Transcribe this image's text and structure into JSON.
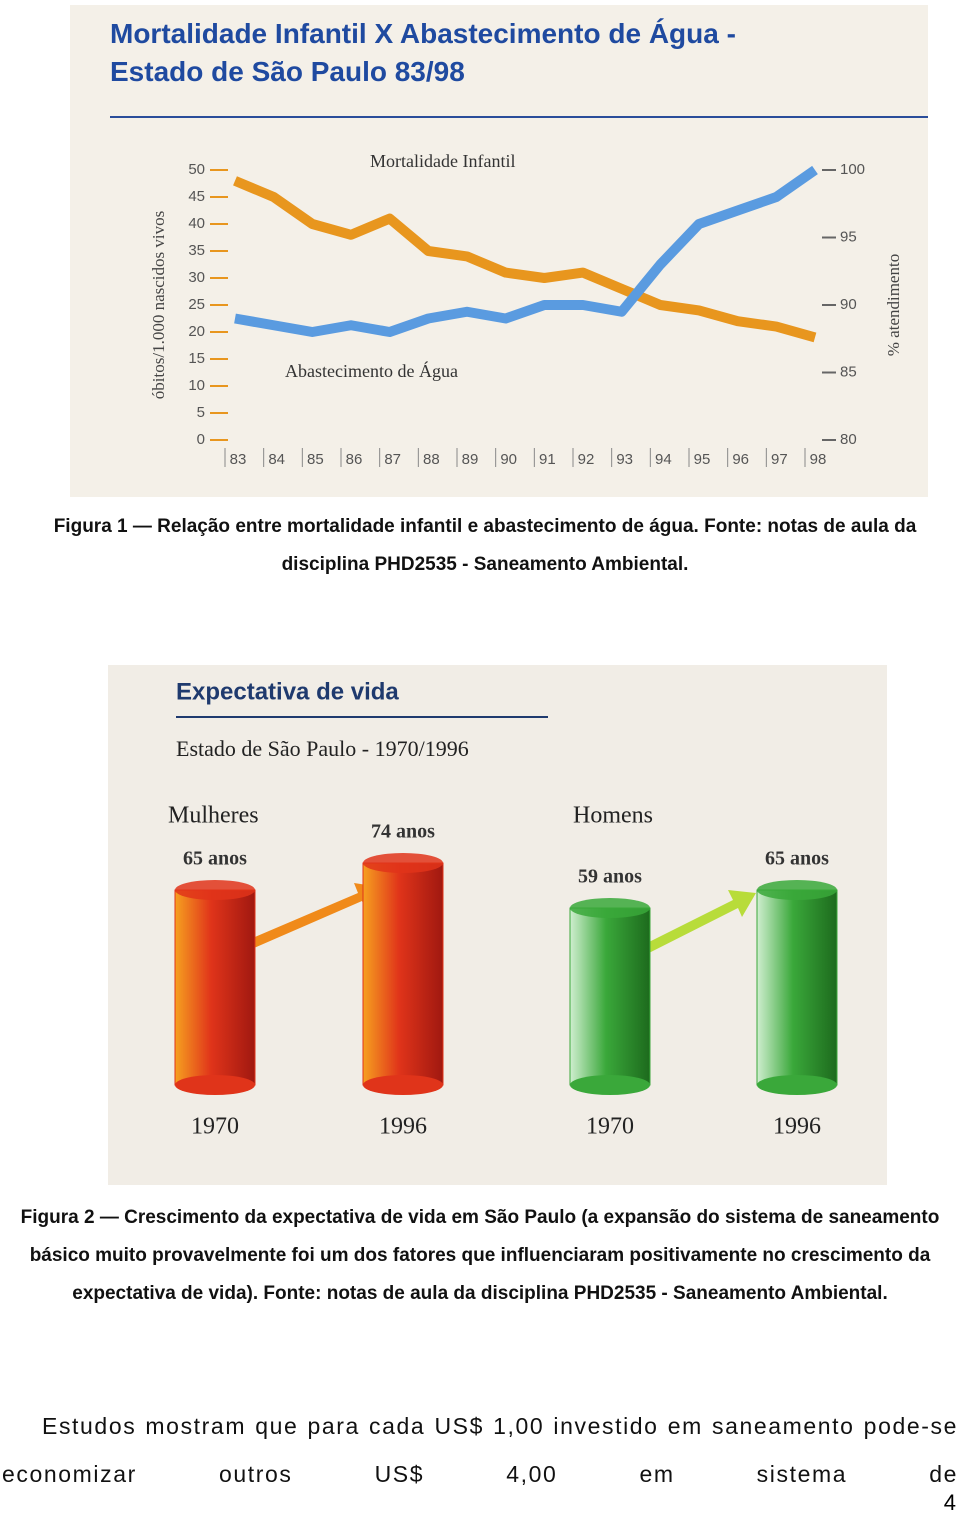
{
  "figures": [
    {
      "chart_data": {
        "type": "line",
        "title": "Mortalidade Infantil X Abastecimento de Água - Estado de São Paulo 83/98",
        "categories": [
          "83",
          "84",
          "85",
          "86",
          "87",
          "88",
          "89",
          "90",
          "91",
          "92",
          "93",
          "94",
          "95",
          "96",
          "97",
          "98"
        ],
        "y_label": "óbitos/1.000 nascidos vivos",
        "y2_label": "% atendimento",
        "ylim": [
          0,
          50
        ],
        "yticks": [
          0,
          5,
          10,
          15,
          20,
          25,
          30,
          35,
          40,
          45,
          50
        ],
        "y2lim": [
          80,
          100
        ],
        "y2ticks": [
          80,
          85,
          90,
          95,
          100
        ],
        "series": [
          {
            "name": "Mortalidade Infantil",
            "color": "#e8961e",
            "values": [
              48,
              45,
              40,
              38,
              41,
              35,
              34,
              31,
              30,
              31,
              28,
              25,
              24,
              22,
              21,
              19
            ]
          },
          {
            "name": "Abastecimento de Água",
            "color": "#5a9be0",
            "axis": "y2",
            "values": [
              89,
              88.5,
              88,
              88.5,
              88,
              89,
              89.5,
              89,
              90,
              90,
              89.5,
              93,
              96,
              97,
              98,
              100
            ]
          }
        ]
      },
      "caption": "Figura 1 — Relação entre mortalidade infantil e abastecimento de água. Fonte: notas de aula da disciplina PHD2535 - Saneamento Ambiental."
    },
    {
      "chart_data": {
        "type": "bar",
        "title": "Expectativa de vida",
        "subtitle": "Estado de São Paulo - 1970/1996",
        "series": [
          {
            "name": "Mulheres",
            "color": "#e0341a",
            "categories": [
              "1970",
              "1996"
            ],
            "values": [
              65,
              74
            ],
            "value_labels": [
              "65 anos",
              "74 anos"
            ]
          },
          {
            "name": "Homens",
            "color": "#3aa83a",
            "categories": [
              "1970",
              "1996"
            ],
            "values": [
              59,
              65
            ],
            "value_labels": [
              "59 anos",
              "65 anos"
            ]
          }
        ]
      },
      "caption": "Figura 2 — Crescimento da expectativa de vida em São Paulo (a expansão do sistema de saneamento básico muito provavelmente foi um dos fatores que influenciaram positivamente no crescimento da expectativa de vida). Fonte: notas de aula da disciplina PHD2535 - Saneamento Ambiental."
    }
  ],
  "body": "Estudos mostram que para cada US$ 1,00 investido em saneamento pode-se economizar outros US$ 4,00 em sistema de",
  "page_number": "4"
}
